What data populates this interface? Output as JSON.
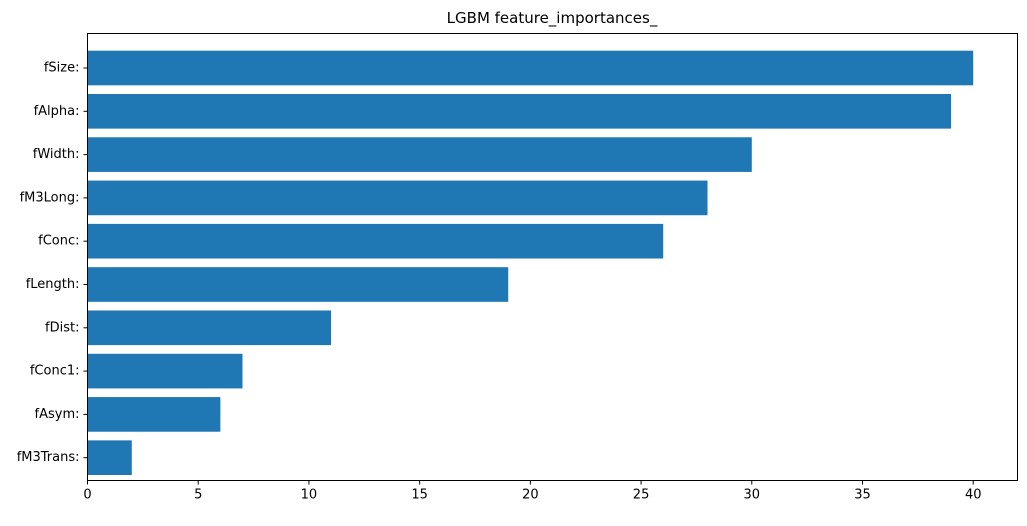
{
  "chart_data": {
    "type": "bar",
    "orientation": "horizontal",
    "title": "LGBM feature_importances_",
    "xlabel": "",
    "ylabel": "",
    "categories": [
      "fSize:",
      "fAlpha:",
      "fWidth:",
      "fM3Long:",
      "fConc:",
      "fLength:",
      "fDist:",
      "fConc1:",
      "fAsym:",
      "fM3Trans:"
    ],
    "values": [
      40,
      39,
      30,
      28,
      26,
      19,
      11,
      7,
      6,
      2
    ],
    "xlim": [
      0,
      42
    ],
    "xticks": [
      0,
      5,
      10,
      15,
      20,
      25,
      30,
      35,
      40
    ],
    "grid": false,
    "colors": {
      "bar": "#1f77b4"
    }
  }
}
